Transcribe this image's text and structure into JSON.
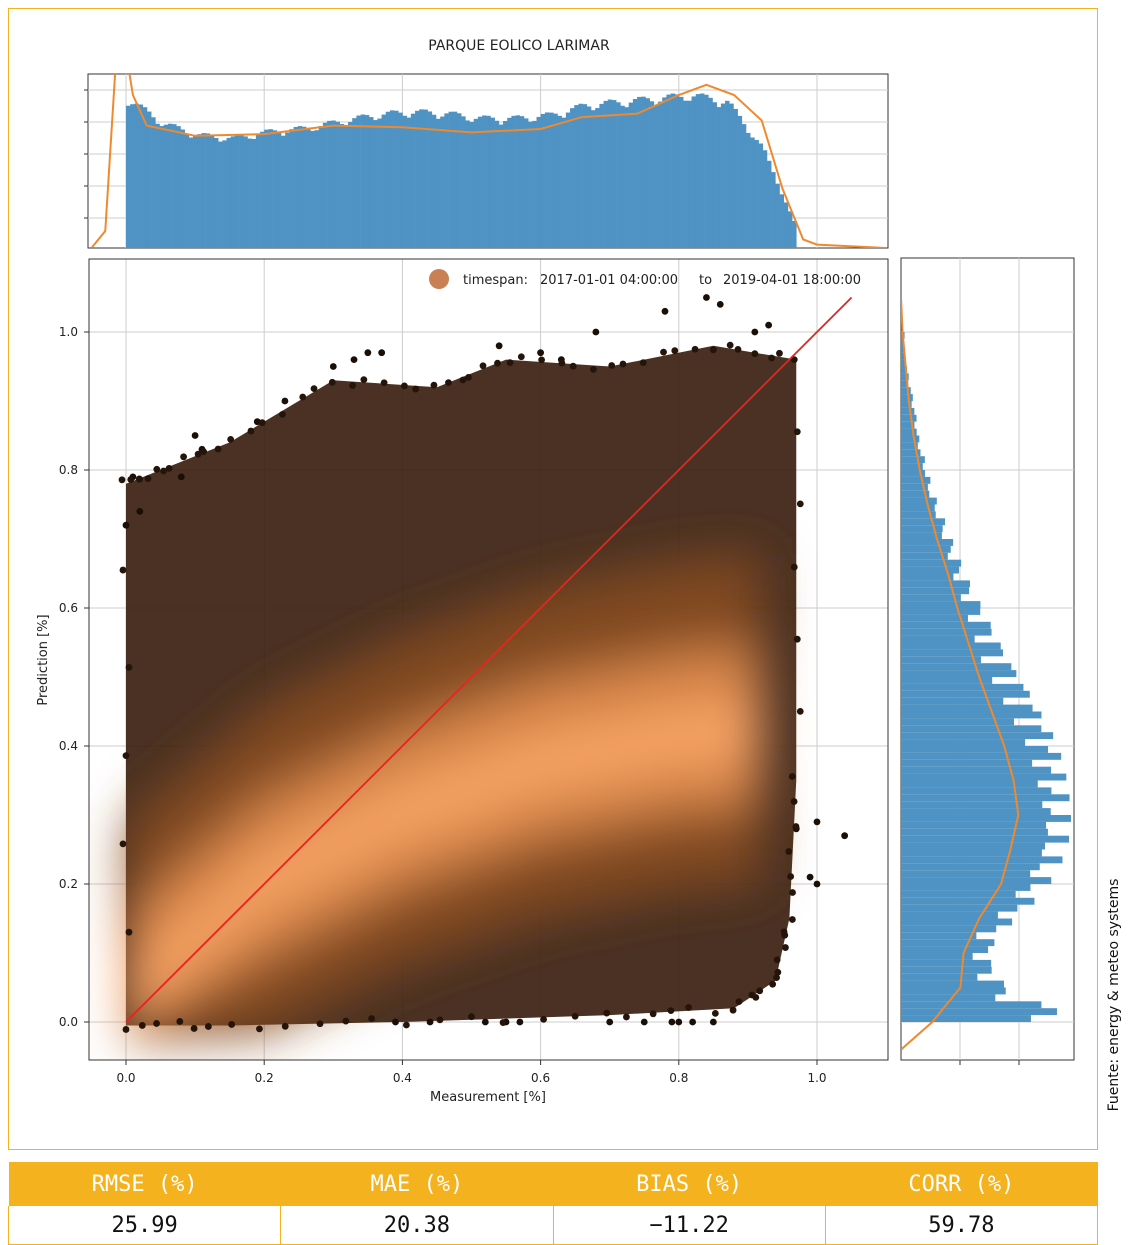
{
  "chart_data": {
    "type": "scatter",
    "title": "PARQUE EOLICO LARIMAR",
    "xlabel": "Measurement [%]",
    "ylabel": "Prediction [%]",
    "xlim": [
      -0.05,
      1.1
    ],
    "ylim": [
      -0.05,
      1.1
    ],
    "x_ticks": [
      "0.0",
      "0.2",
      "0.4",
      "0.6",
      "0.8",
      "1.0"
    ],
    "y_ticks": [
      "0.0",
      "0.2",
      "0.4",
      "0.6",
      "0.8",
      "1.0"
    ],
    "grid": true,
    "legend": {
      "placement": "top-right",
      "entries": [
        {
          "prefix": "timespan:",
          "start": "2017-01-01 04:00:00",
          "connector": "to",
          "end": "2019-04-01 18:00:00"
        }
      ]
    },
    "reference_line": {
      "x": [
        0.0,
        1.05
      ],
      "y": [
        0.0,
        1.05
      ],
      "color": "#e8241f"
    },
    "density_ridge": [
      [
        0.0,
        0.03
      ],
      [
        0.2,
        0.2
      ],
      [
        0.4,
        0.3
      ],
      [
        0.6,
        0.37
      ],
      [
        0.8,
        0.41
      ],
      [
        0.92,
        0.42
      ]
    ],
    "outlier_points": [
      [
        0.0,
        0.72
      ],
      [
        0.01,
        0.79
      ],
      [
        0.02,
        0.74
      ],
      [
        0.08,
        0.79
      ],
      [
        0.1,
        0.85
      ],
      [
        0.11,
        0.83
      ],
      [
        0.19,
        0.87
      ],
      [
        0.23,
        0.9
      ],
      [
        0.3,
        0.95
      ],
      [
        0.33,
        0.96
      ],
      [
        0.35,
        0.97
      ],
      [
        0.37,
        0.97
      ],
      [
        0.54,
        0.98
      ],
      [
        0.6,
        0.97
      ],
      [
        0.63,
        0.96
      ],
      [
        0.68,
        1.0
      ],
      [
        0.78,
        1.03
      ],
      [
        0.84,
        1.05
      ],
      [
        0.86,
        1.04
      ],
      [
        0.91,
        1.0
      ],
      [
        0.93,
        1.01
      ],
      [
        0.97,
        0.28
      ],
      [
        1.0,
        0.29
      ],
      [
        1.04,
        0.27
      ],
      [
        0.99,
        0.21
      ],
      [
        1.0,
        0.2
      ],
      [
        0.39,
        0.0
      ],
      [
        0.44,
        0.0
      ],
      [
        0.52,
        0.0
      ],
      [
        0.55,
        0.0
      ],
      [
        0.57,
        0.0
      ],
      [
        0.7,
        0.0
      ],
      [
        0.75,
        0.0
      ],
      [
        0.79,
        0.0
      ],
      [
        0.8,
        0.0
      ],
      [
        0.82,
        0.0
      ],
      [
        0.85,
        0.0
      ]
    ],
    "marginal_x": {
      "type": "bar",
      "edges": [
        0.0,
        0.97
      ],
      "relative_counts": [
        0.9,
        0.75,
        0.68,
        0.66,
        0.7,
        0.72,
        0.76,
        0.8,
        0.82,
        0.81,
        0.78,
        0.78,
        0.8,
        0.86,
        0.88,
        0.9,
        0.92,
        0.88,
        0.6,
        0.1
      ],
      "curve": [
        [
          -0.05,
          0.0
        ],
        [
          -0.03,
          0.1
        ],
        [
          -0.01,
          1.4
        ],
        [
          0.01,
          0.9
        ],
        [
          0.03,
          0.72
        ],
        [
          0.1,
          0.66
        ],
        [
          0.2,
          0.67
        ],
        [
          0.3,
          0.72
        ],
        [
          0.4,
          0.71
        ],
        [
          0.5,
          0.68
        ],
        [
          0.6,
          0.7
        ],
        [
          0.66,
          0.77
        ],
        [
          0.74,
          0.79
        ],
        [
          0.8,
          0.9
        ],
        [
          0.84,
          0.96
        ],
        [
          0.88,
          0.9
        ],
        [
          0.92,
          0.75
        ],
        [
          0.95,
          0.35
        ],
        [
          0.98,
          0.05
        ],
        [
          1.0,
          0.02
        ],
        [
          1.1,
          0.0
        ]
      ]
    },
    "marginal_y": {
      "type": "bar",
      "bins_y": [
        0.0,
        0.04,
        0.08,
        0.12,
        0.16,
        0.2,
        0.24,
        0.28,
        0.32,
        0.36,
        0.4,
        0.44,
        0.48,
        0.52,
        0.56,
        0.6,
        0.64,
        0.68,
        0.72,
        0.76,
        0.8,
        0.84,
        0.88,
        0.92,
        0.96
      ],
      "relative_counts": [
        0.98,
        0.6,
        0.5,
        0.52,
        0.7,
        0.82,
        0.9,
        0.93,
        0.92,
        0.9,
        0.86,
        0.78,
        0.7,
        0.6,
        0.52,
        0.44,
        0.36,
        0.3,
        0.24,
        0.18,
        0.14,
        0.1,
        0.08,
        0.05,
        0.02
      ],
      "curve": [
        [
          -0.04,
          0.0
        ],
        [
          0.0,
          0.2
        ],
        [
          0.05,
          0.38
        ],
        [
          0.1,
          0.4
        ],
        [
          0.15,
          0.5
        ],
        [
          0.2,
          0.64
        ],
        [
          0.25,
          0.7
        ],
        [
          0.3,
          0.75
        ],
        [
          0.35,
          0.72
        ],
        [
          0.4,
          0.66
        ],
        [
          0.45,
          0.58
        ],
        [
          0.5,
          0.5
        ],
        [
          0.55,
          0.43
        ],
        [
          0.6,
          0.36
        ],
        [
          0.65,
          0.3
        ],
        [
          0.7,
          0.23
        ],
        [
          0.75,
          0.17
        ],
        [
          0.8,
          0.12
        ],
        [
          0.85,
          0.08
        ],
        [
          0.9,
          0.05
        ],
        [
          0.95,
          0.03
        ],
        [
          1.0,
          0.01
        ],
        [
          1.05,
          0.0
        ]
      ]
    }
  },
  "source_note": "Fuente: energy & meteo systems",
  "metrics": {
    "headers": [
      "RMSE (%)",
      "MAE (%)",
      "BIAS (%)",
      "CORR (%)"
    ],
    "values": [
      "25.99",
      "20.38",
      "−11.22",
      "59.78"
    ]
  },
  "colors": {
    "accent": "#f5b21f",
    "hist_bar": "#4f93c4",
    "kde_line": "#f0892d",
    "reference_line": "#e8241f",
    "density_high": "#f6a264",
    "density_low": "#2a1608",
    "legend_marker": "#c98153"
  }
}
